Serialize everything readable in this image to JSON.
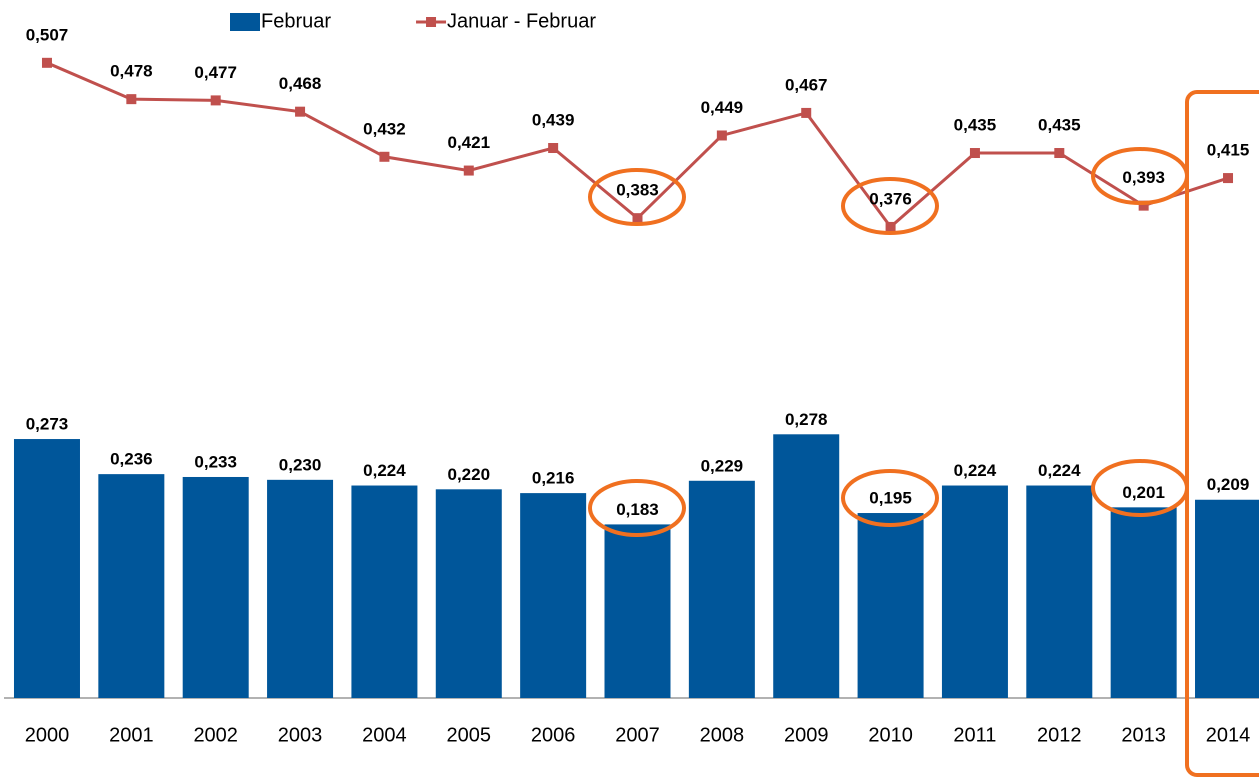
{
  "chart_data": {
    "type": "bar",
    "categories": [
      "2000",
      "2001",
      "2002",
      "2003",
      "2004",
      "2005",
      "2006",
      "2007",
      "2008",
      "2009",
      "2010",
      "2011",
      "2012",
      "2013",
      "2014"
    ],
    "series": [
      {
        "name": "Februar",
        "type": "bar",
        "color": "#00569a",
        "values": [
          0.273,
          0.236,
          0.233,
          0.23,
          0.224,
          0.22,
          0.216,
          0.183,
          0.229,
          0.278,
          0.195,
          0.224,
          0.224,
          0.201,
          0.209
        ],
        "value_labels": [
          "0,273",
          "0,236",
          "0,233",
          "0,230",
          "0,224",
          "0,220",
          "0,216",
          "0,183",
          "0,229",
          "0,278",
          "0,195",
          "0,224",
          "0,224",
          "0,201",
          "0,209"
        ]
      },
      {
        "name": "Januar - Februar",
        "type": "line",
        "axis": "y2",
        "color": "#c0504d",
        "values": [
          0.507,
          0.478,
          0.477,
          0.468,
          0.432,
          0.421,
          0.439,
          0.383,
          0.449,
          0.467,
          0.376,
          0.435,
          0.435,
          0.393,
          0.415
        ],
        "value_labels": [
          "0,507",
          "0,478",
          "0,477",
          "0,468",
          "0,432",
          "0,421",
          "0,439",
          "0,383",
          "0,449",
          "0,467",
          "0,376",
          "0,435",
          "0,435",
          "0,393",
          "0,415"
        ]
      }
    ],
    "ylim": [
      0,
      0.7
    ],
    "y2lim": [
      0,
      0.53
    ],
    "legend": "top"
  }
}
